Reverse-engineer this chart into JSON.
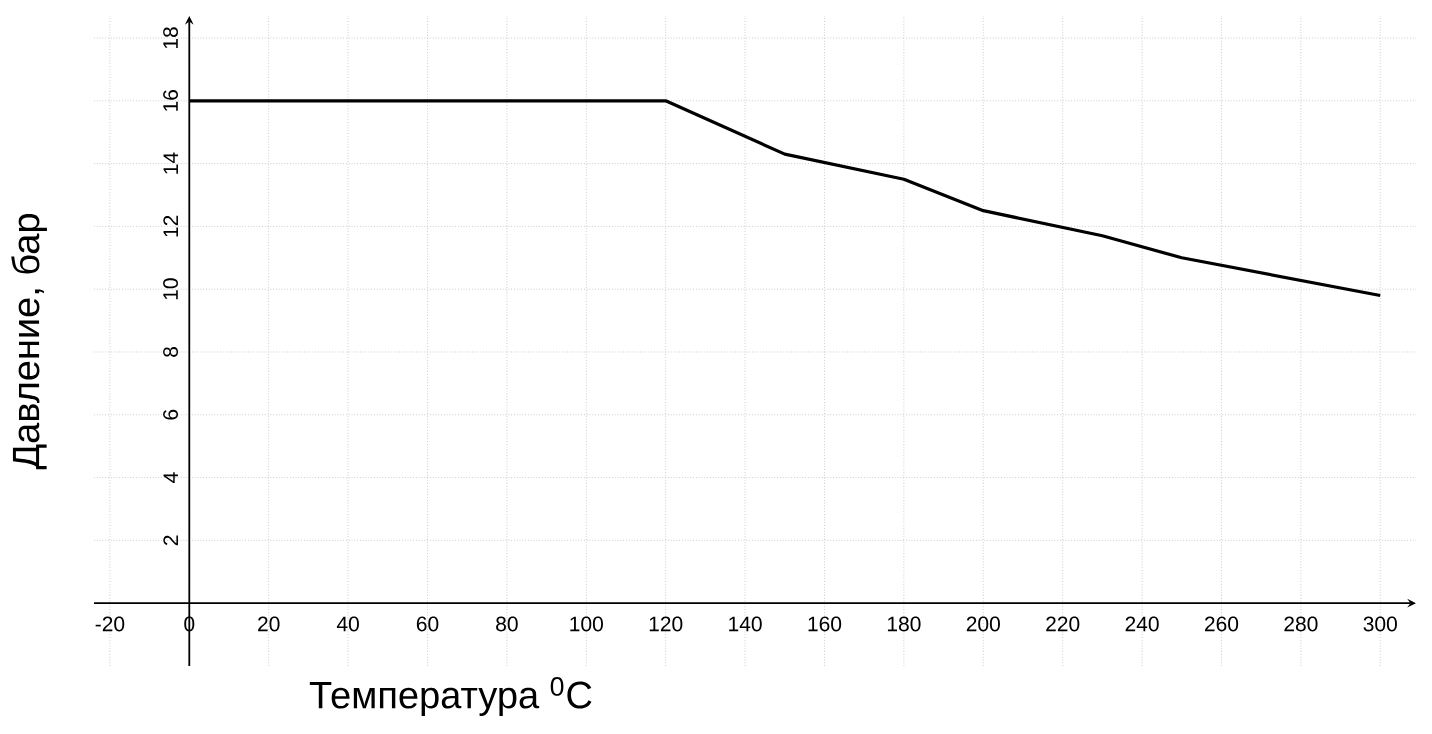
{
  "chart_data": {
    "type": "line",
    "xlabel": "Температура $^{0}$C",
    "ylabel": "Давление, бар",
    "x": [
      0,
      120,
      150,
      180,
      200,
      230,
      250,
      300
    ],
    "series": [
      {
        "color": "#000000",
        "values": [
          16,
          16,
          14.3,
          13.5,
          12.5,
          11.7,
          11.0,
          9.8
        ]
      }
    ],
    "xlim": [
      -24,
      309
    ],
    "ylim": [
      -2,
      18.7
    ],
    "xticks": [
      -20,
      0,
      20,
      40,
      60,
      80,
      100,
      120,
      140,
      160,
      180,
      200,
      220,
      240,
      260,
      280,
      300
    ],
    "yticks": [
      2,
      4,
      6,
      8,
      10,
      12,
      14,
      16,
      18
    ],
    "grid": true,
    "marker": "none",
    "line_style": "solid"
  }
}
